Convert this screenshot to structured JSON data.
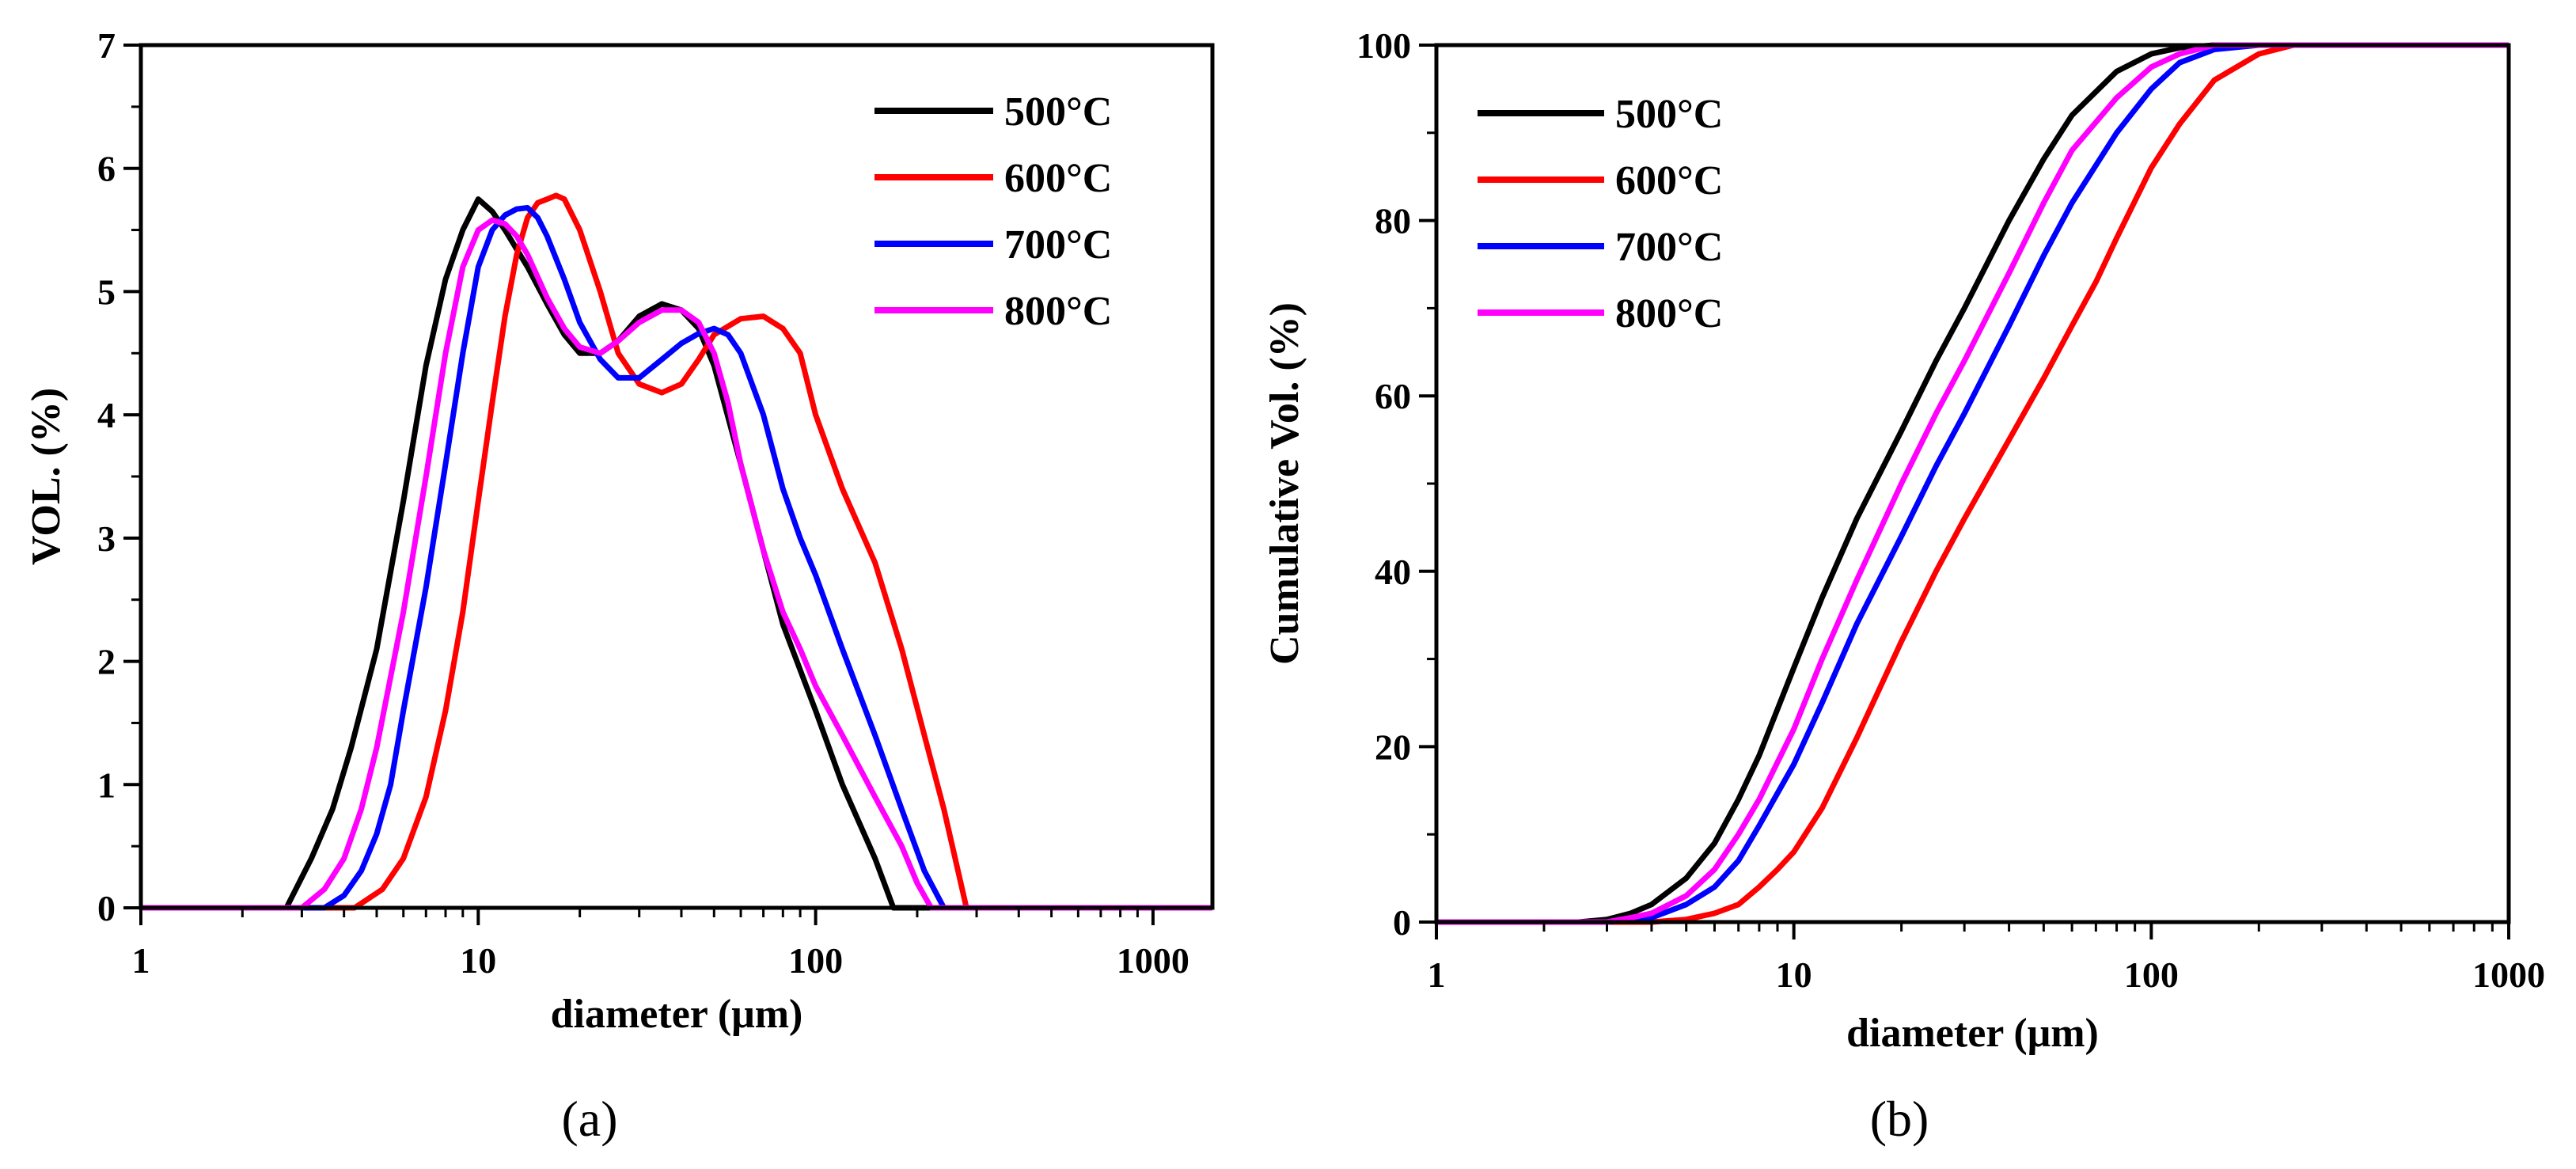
{
  "chart_data": [
    {
      "panel_label": "(a)",
      "type": "line",
      "x_scale": "log",
      "xlabel": "diameter (μm)",
      "ylabel": "VOL. (%)",
      "xlim": [
        1,
        1500
      ],
      "ylim": [
        0,
        7
      ],
      "x_ticks": [
        1,
        10,
        100,
        1000
      ],
      "x_tick_labels": [
        "1",
        "10",
        "100",
        "1000"
      ],
      "y_ticks": [
        0,
        1,
        2,
        3,
        4,
        5,
        6,
        7
      ],
      "y_tick_labels": [
        "0",
        "1",
        "2",
        "3",
        "4",
        "5",
        "6",
        "7"
      ],
      "legend_position": "top-right",
      "series": [
        {
          "name": "500°C",
          "color": "#000000",
          "x": [
            1,
            2.7,
            3.2,
            3.7,
            4.2,
            5,
            6,
            7,
            8,
            9,
            10,
            11,
            12,
            14,
            16,
            18,
            20,
            23,
            26,
            30,
            35,
            40,
            45,
            50,
            60,
            70,
            80,
            100,
            120,
            150,
            170,
            1500
          ],
          "y": [
            0,
            0,
            0.4,
            0.8,
            1.3,
            2.1,
            3.3,
            4.4,
            5.1,
            5.5,
            5.75,
            5.65,
            5.5,
            5.2,
            4.9,
            4.65,
            4.5,
            4.5,
            4.6,
            4.8,
            4.9,
            4.85,
            4.7,
            4.4,
            3.6,
            2.9,
            2.3,
            1.6,
            1.0,
            0.4,
            0,
            0
          ]
        },
        {
          "name": "600°C",
          "color": "#ff0000",
          "x": [
            1,
            4.3,
            5.2,
            6,
            7,
            8,
            9,
            10,
            11,
            12,
            13,
            14,
            15,
            16,
            17,
            18,
            20,
            23,
            26,
            30,
            35,
            40,
            45,
            50,
            60,
            70,
            80,
            90,
            100,
            120,
            150,
            180,
            210,
            240,
            280,
            1500
          ],
          "y": [
            0,
            0,
            0.15,
            0.4,
            0.9,
            1.6,
            2.4,
            3.3,
            4.1,
            4.8,
            5.3,
            5.6,
            5.72,
            5.75,
            5.78,
            5.75,
            5.5,
            5.0,
            4.5,
            4.25,
            4.18,
            4.25,
            4.45,
            4.65,
            4.78,
            4.8,
            4.7,
            4.5,
            4.0,
            3.4,
            2.8,
            2.1,
            1.4,
            0.8,
            0,
            0
          ]
        },
        {
          "name": "700°C",
          "color": "#0000ff",
          "x": [
            1,
            3.5,
            4,
            4.5,
            5,
            5.5,
            6,
            7,
            8,
            9,
            10,
            11,
            12,
            13,
            14,
            15,
            16,
            18,
            20,
            23,
            26,
            30,
            35,
            40,
            45,
            50,
            55,
            60,
            70,
            80,
            90,
            100,
            120,
            150,
            180,
            210,
            240,
            1500
          ],
          "y": [
            0,
            0,
            0.1,
            0.3,
            0.6,
            1.0,
            1.6,
            2.6,
            3.6,
            4.5,
            5.2,
            5.5,
            5.62,
            5.67,
            5.68,
            5.6,
            5.45,
            5.1,
            4.75,
            4.45,
            4.3,
            4.3,
            4.45,
            4.58,
            4.66,
            4.7,
            4.65,
            4.5,
            4.0,
            3.4,
            3.0,
            2.7,
            2.1,
            1.4,
            0.8,
            0.3,
            0,
            0
          ]
        },
        {
          "name": "800°C",
          "color": "#ff00ff",
          "x": [
            1,
            3.0,
            3.5,
            4,
            4.5,
            5,
            6,
            7,
            8,
            9,
            10,
            11,
            12,
            13,
            14,
            16,
            18,
            20,
            23,
            26,
            30,
            35,
            40,
            45,
            50,
            55,
            60,
            70,
            80,
            90,
            100,
            120,
            150,
            180,
            200,
            220,
            1500
          ],
          "y": [
            0,
            0,
            0.15,
            0.4,
            0.8,
            1.3,
            2.4,
            3.5,
            4.5,
            5.2,
            5.5,
            5.58,
            5.55,
            5.45,
            5.3,
            4.95,
            4.7,
            4.55,
            4.5,
            4.6,
            4.75,
            4.85,
            4.85,
            4.75,
            4.5,
            4.1,
            3.6,
            2.9,
            2.4,
            2.1,
            1.8,
            1.4,
            0.9,
            0.5,
            0.2,
            0,
            0
          ]
        }
      ]
    },
    {
      "panel_label": "(b)",
      "type": "line",
      "x_scale": "log",
      "xlabel": "diameter (μm)",
      "ylabel": "Cumulative Vol. (%)",
      "xlim": [
        1,
        1000
      ],
      "ylim": [
        0,
        100
      ],
      "x_ticks": [
        1,
        10,
        100,
        1000
      ],
      "x_tick_labels": [
        "1",
        "10",
        "100",
        "1000"
      ],
      "y_ticks": [
        0,
        20,
        40,
        60,
        80,
        100
      ],
      "y_tick_labels": [
        "0",
        "20",
        "40",
        "60",
        "80",
        "100"
      ],
      "legend_position": "top-left",
      "series": [
        {
          "name": "500°C",
          "color": "#000000",
          "x": [
            1,
            2.5,
            3,
            3.5,
            4,
            5,
            6,
            7,
            8,
            10,
            12,
            15,
            20,
            25,
            30,
            40,
            50,
            60,
            80,
            100,
            120,
            150,
            200,
            1000
          ],
          "y": [
            0,
            0,
            0.3,
            1,
            2,
            5,
            9,
            14,
            19,
            29,
            37,
            46,
            56,
            64,
            70,
            80,
            87,
            92,
            97,
            99,
            99.7,
            100,
            100,
            100
          ]
        },
        {
          "name": "600°C",
          "color": "#ff0000",
          "x": [
            1,
            4,
            5,
            6,
            7,
            8,
            9,
            10,
            12,
            15,
            20,
            25,
            30,
            40,
            50,
            60,
            70,
            80,
            100,
            120,
            150,
            200,
            250,
            300,
            1000
          ],
          "y": [
            0,
            0,
            0.3,
            1,
            2,
            4,
            6,
            8,
            13,
            21,
            32,
            40,
            46,
            55,
            62,
            68,
            73,
            78,
            86,
            91,
            96,
            99,
            100,
            100,
            100
          ]
        },
        {
          "name": "700°C",
          "color": "#0000ff",
          "x": [
            1,
            3,
            4,
            5,
            6,
            7,
            8,
            10,
            12,
            15,
            20,
            25,
            30,
            40,
            50,
            60,
            80,
            100,
            120,
            150,
            200,
            250,
            1000
          ],
          "y": [
            0,
            0,
            0.5,
            2,
            4,
            7,
            11,
            18,
            25,
            34,
            44,
            52,
            58,
            68,
            76,
            82,
            90,
            95,
            98,
            99.5,
            100,
            100,
            100
          ]
        },
        {
          "name": "800°C",
          "color": "#ff00ff",
          "x": [
            1,
            3,
            3.5,
            4,
            5,
            6,
            7,
            8,
            10,
            12,
            15,
            20,
            25,
            30,
            40,
            50,
            60,
            80,
            100,
            120,
            150,
            200,
            1000
          ],
          "y": [
            0,
            0,
            0.5,
            1,
            3,
            6,
            10,
            14,
            22,
            30,
            39,
            50,
            58,
            64,
            74,
            82,
            88,
            94,
            97.5,
            99,
            100,
            100,
            100
          ]
        }
      ]
    }
  ]
}
